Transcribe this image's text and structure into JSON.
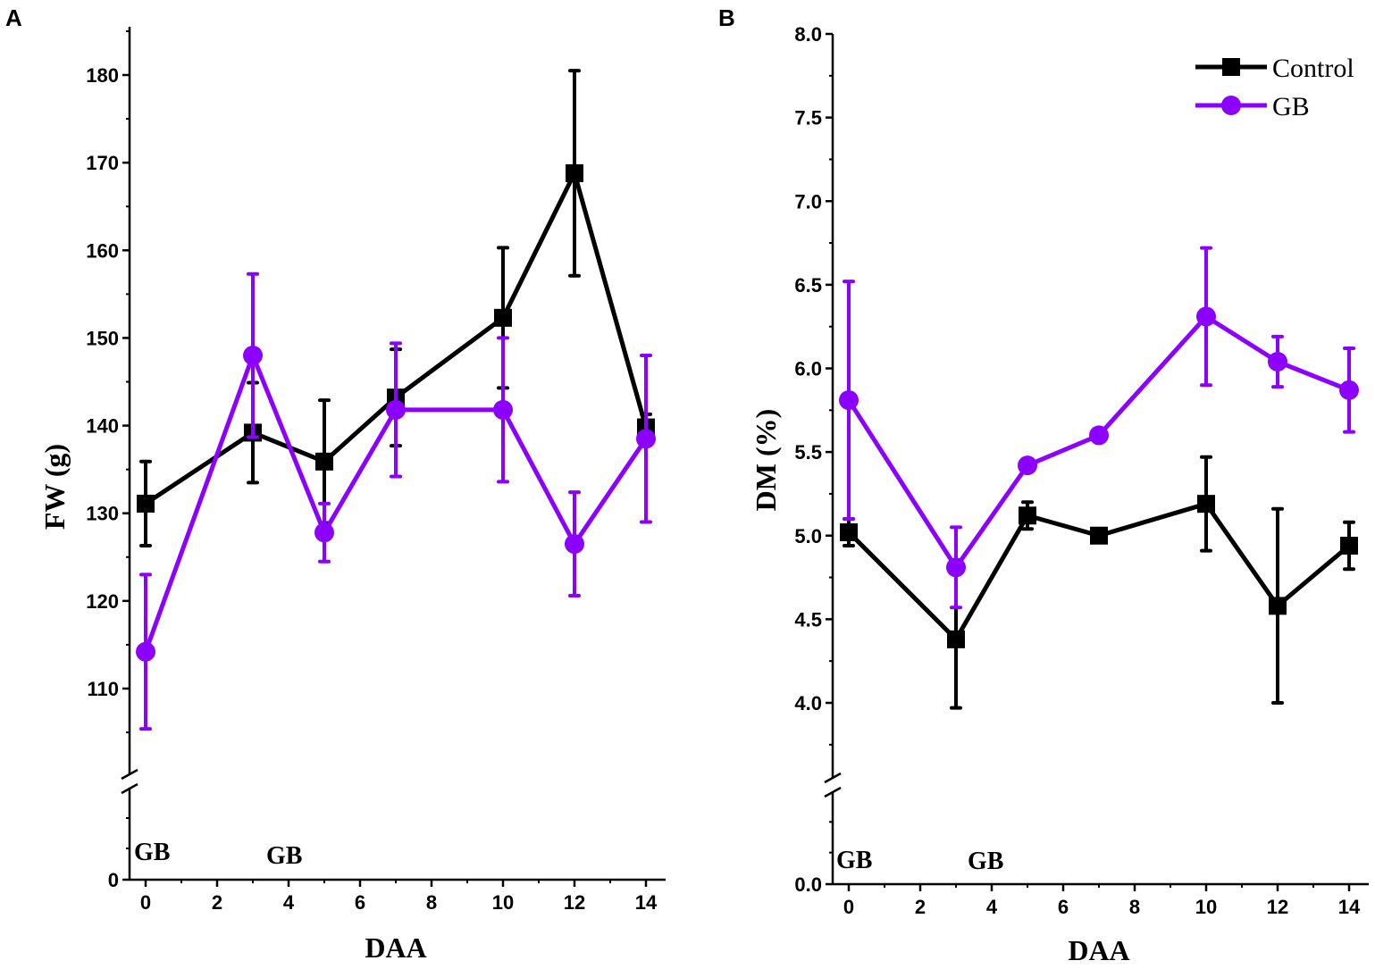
{
  "colors": {
    "control": "#000000",
    "gb": "#8b00ff"
  },
  "legend": {
    "control_label": "Control",
    "gb_label": "GB",
    "position": "top-right of panel B"
  },
  "chart_data": [
    {
      "type": "line",
      "panel": "A",
      "xlabel": "DAA",
      "ylabel": "FW (g)",
      "xlim": [
        -0.5,
        14.5
      ],
      "xticks": [
        0,
        2,
        4,
        6,
        8,
        10,
        12,
        14
      ],
      "yticks": [
        110,
        120,
        130,
        140,
        150,
        160,
        170,
        180
      ],
      "ylim": [
        100,
        185
      ],
      "y_break": true,
      "y_zero_label": "0",
      "annotations": [
        {
          "text": "GB",
          "x": 0
        },
        {
          "text": "GB",
          "x": 4
        }
      ],
      "series": [
        {
          "name": "Control",
          "x": [
            0,
            3,
            5,
            7,
            10,
            12,
            14
          ],
          "y": [
            131.1,
            139.2,
            135.9,
            143.2,
            152.3,
            168.8,
            139.8
          ],
          "err": [
            4.8,
            5.7,
            7.0,
            5.5,
            8.0,
            11.7,
            1.5
          ]
        },
        {
          "name": "GB",
          "x": [
            0,
            3,
            5,
            7,
            10,
            12,
            14
          ],
          "y": [
            114.2,
            148.0,
            127.8,
            141.8,
            141.8,
            126.5,
            138.5
          ],
          "err": [
            8.8,
            9.3,
            3.3,
            7.6,
            8.2,
            5.9,
            9.5
          ]
        }
      ]
    },
    {
      "type": "line",
      "panel": "B",
      "xlabel": "DAA",
      "ylabel": "DM (%)",
      "xlim": [
        -0.5,
        14.5
      ],
      "xticks": [
        0,
        2,
        4,
        6,
        8,
        10,
        12,
        14
      ],
      "yticks": [
        "4.0",
        "4.5",
        "5.0",
        "5.5",
        "6.0",
        "6.5",
        "7.0",
        "7.5",
        "8.0"
      ],
      "ylim": [
        3.5,
        8.0
      ],
      "y_break": true,
      "y_zero_label": "0.0",
      "annotations": [
        {
          "text": "GB",
          "x": 0
        },
        {
          "text": "GB",
          "x": 4
        }
      ],
      "series": [
        {
          "name": "Control",
          "x": [
            0,
            3,
            5,
            7,
            10,
            12,
            14
          ],
          "y": [
            5.02,
            4.38,
            5.12,
            5.0,
            5.19,
            4.58,
            4.94
          ],
          "err": [
            0.08,
            0.41,
            0.08,
            0.03,
            0.28,
            0.58,
            0.14
          ]
        },
        {
          "name": "GB",
          "x": [
            0,
            3,
            5,
            7,
            10,
            12,
            14
          ],
          "y": [
            5.81,
            4.81,
            5.42,
            5.6,
            6.31,
            6.04,
            5.87
          ],
          "err": [
            0.71,
            0.24,
            0.03,
            0.03,
            0.41,
            0.15,
            0.25
          ]
        }
      ]
    }
  ]
}
